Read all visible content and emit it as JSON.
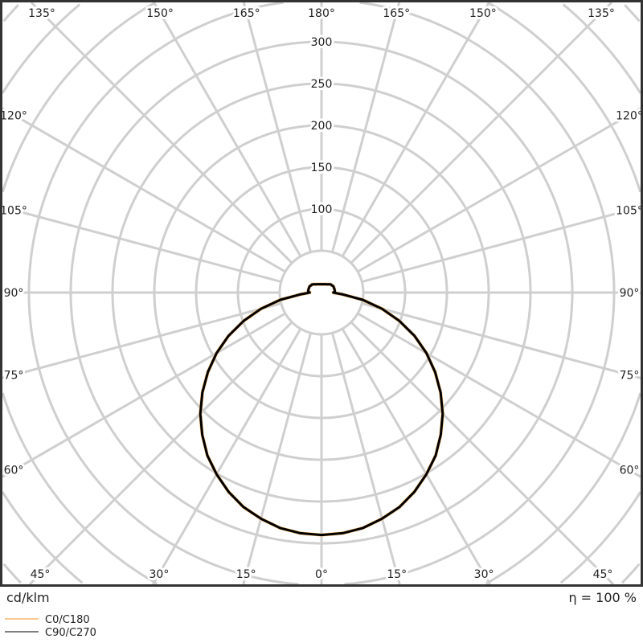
{
  "chart_data": {
    "type": "polar",
    "unit_label": "cd/klm",
    "efficiency_label": "η = 100 %",
    "radial_ticks": [
      100,
      150,
      200,
      250,
      300
    ],
    "radial_grid_step": 50,
    "angle_grid_step_deg": 15,
    "angle_labels": [
      {
        "angle": 135,
        "side": "left",
        "text": "135°"
      },
      {
        "angle": 150,
        "side": "left",
        "text": "150°"
      },
      {
        "angle": 165,
        "side": "left",
        "text": "165°"
      },
      {
        "angle": 180,
        "side": "center",
        "text": "180°"
      },
      {
        "angle": 165,
        "side": "right",
        "text": "165°"
      },
      {
        "angle": 150,
        "side": "right",
        "text": "150°"
      },
      {
        "angle": 135,
        "side": "right",
        "text": "135°"
      },
      {
        "angle": 120,
        "side": "left",
        "text": "120°"
      },
      {
        "angle": 105,
        "side": "left",
        "text": "105°"
      },
      {
        "angle": 90,
        "side": "left",
        "text": "90°"
      },
      {
        "angle": 75,
        "side": "left",
        "text": "75°"
      },
      {
        "angle": 60,
        "side": "left",
        "text": "60°"
      },
      {
        "angle": 120,
        "side": "right",
        "text": "120°"
      },
      {
        "angle": 105,
        "side": "right",
        "text": "105°"
      },
      {
        "angle": 90,
        "side": "right",
        "text": "90°"
      },
      {
        "angle": 75,
        "side": "right",
        "text": "75°"
      },
      {
        "angle": 60,
        "side": "right",
        "text": "60°"
      },
      {
        "angle": 45,
        "side": "left",
        "text": "45°"
      },
      {
        "angle": 30,
        "side": "left",
        "text": "30°"
      },
      {
        "angle": 15,
        "side": "left",
        "text": "15°"
      },
      {
        "angle": 0,
        "side": "center",
        "text": "0°"
      },
      {
        "angle": 15,
        "side": "right",
        "text": "15°"
      },
      {
        "angle": 30,
        "side": "right",
        "text": "30°"
      },
      {
        "angle": 45,
        "side": "right",
        "text": "45°"
      }
    ],
    "gamma_deg": [
      0,
      5,
      10,
      15,
      20,
      25,
      30,
      35,
      40,
      45,
      50,
      55,
      60,
      65,
      70,
      75,
      80,
      85,
      90,
      95,
      100,
      105,
      110,
      115,
      120,
      125,
      130,
      135,
      140,
      145,
      150,
      155,
      160,
      165,
      170,
      175,
      180
    ],
    "series": [
      {
        "name": "C0/C180",
        "color": "#f7b96a",
        "values": [
          290,
          289,
          286,
          280,
          273,
          263,
          251,
          238,
          222,
          205,
          186,
          166,
          145,
          123,
          99,
          75,
          50,
          26,
          14,
          16,
          16,
          16,
          16,
          16,
          16,
          15,
          15,
          14,
          13,
          12,
          11.5,
          11,
          10.6,
          10.4,
          10.2,
          10,
          10
        ]
      },
      {
        "name": "C90/C270",
        "color": "#555555",
        "values": [
          290,
          289,
          286,
          280,
          273,
          263,
          251,
          238,
          222,
          205,
          186,
          166,
          145,
          123,
          99,
          75,
          50,
          26,
          14,
          16,
          16,
          16,
          16,
          16,
          16,
          15,
          15,
          14,
          13,
          12,
          11.5,
          11,
          10.6,
          10.4,
          10.2,
          10,
          10
        ]
      }
    ],
    "curve_color": "#000000",
    "grid": true,
    "legend_placement": "bottom-left"
  }
}
